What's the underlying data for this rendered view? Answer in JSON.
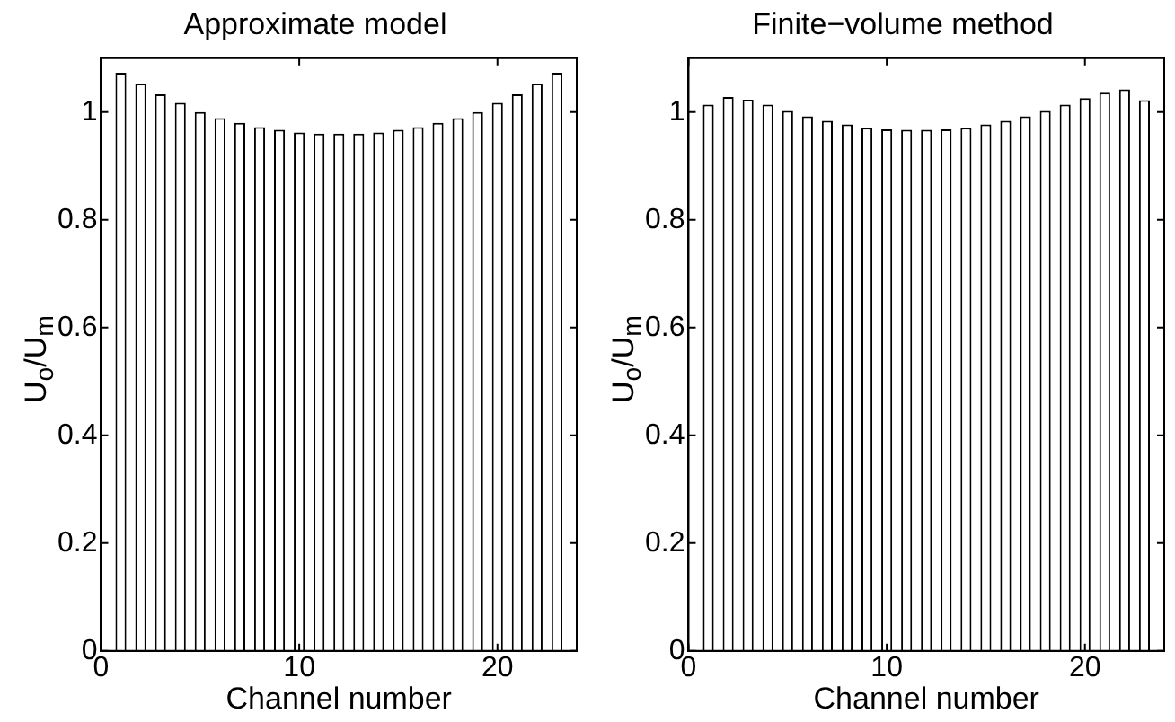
{
  "chart_data": [
    {
      "type": "bar",
      "title": "Approximate model",
      "xlabel": "Channel number",
      "ylabel": "U$_{o}$/U$_{m}$",
      "xlim": [
        0,
        24
      ],
      "xticks": [
        0,
        10,
        20
      ],
      "ylim": [
        0,
        1.1
      ],
      "yticks": [
        0,
        0.2,
        0.4,
        0.6,
        0.8,
        1
      ],
      "grid": false,
      "legend": false,
      "series": [
        {
          "color": "#ffffff",
          "x": [
            1,
            2,
            3,
            4,
            5,
            6,
            7,
            8,
            9,
            10,
            11,
            12,
            13,
            14,
            15,
            16,
            17,
            18,
            19,
            20,
            21,
            22,
            23
          ],
          "values": [
            1.073,
            1.053,
            1.033,
            1.017,
            1.0,
            0.989,
            0.98,
            0.972,
            0.967,
            0.962,
            0.96,
            0.96,
            0.96,
            0.962,
            0.967,
            0.972,
            0.98,
            0.989,
            1.0,
            1.017,
            1.033,
            1.053,
            1.073
          ]
        }
      ]
    },
    {
      "type": "bar",
      "title": "Finite−volume method",
      "xlabel": "Channel number",
      "ylabel": "U$_{o}$/U$_{m}$",
      "xlim": [
        0,
        24
      ],
      "xticks": [
        0,
        10,
        20
      ],
      "ylim": [
        0,
        1.1
      ],
      "yticks": [
        0,
        0.2,
        0.4,
        0.6,
        0.8,
        1
      ],
      "grid": false,
      "legend": false,
      "series": [
        {
          "color": "#ffffff",
          "x": [
            1,
            2,
            3,
            4,
            5,
            6,
            7,
            8,
            9,
            10,
            11,
            12,
            13,
            14,
            15,
            16,
            17,
            18,
            19,
            20,
            21,
            22,
            23
          ],
          "values": [
            1.014,
            1.028,
            1.023,
            1.014,
            1.002,
            0.992,
            0.984,
            0.977,
            0.971,
            0.968,
            0.967,
            0.967,
            0.968,
            0.971,
            0.977,
            0.984,
            0.992,
            1.002,
            1.014,
            1.026,
            1.036,
            1.042,
            1.022
          ]
        }
      ]
    }
  ]
}
